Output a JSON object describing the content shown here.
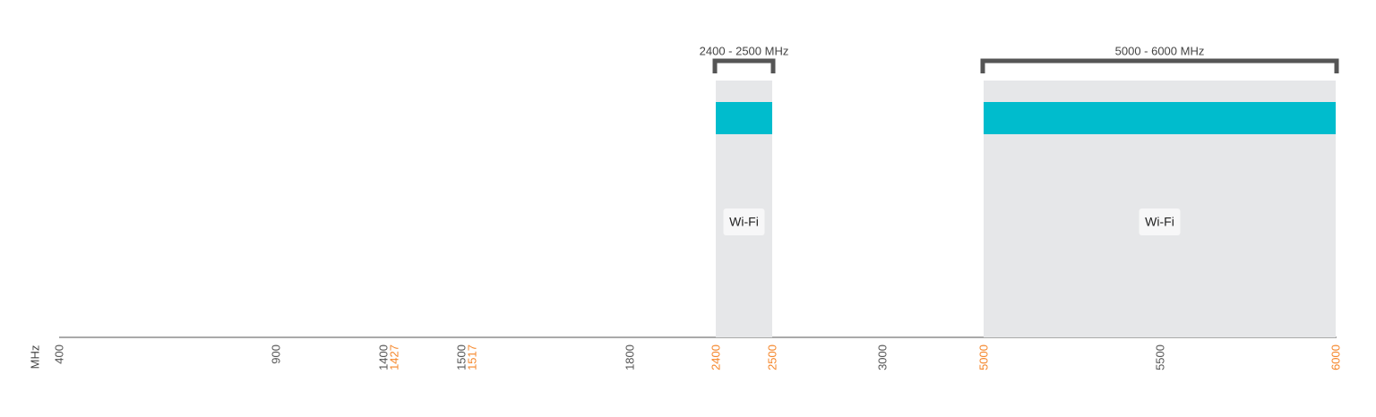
{
  "chart_data": {
    "type": "spectrum",
    "xlabel": "MHz",
    "xlim": [
      400,
      6000
    ],
    "xticks": [
      400,
      900,
      1400,
      1427,
      1500,
      1517,
      1800,
      2400,
      2500,
      3000,
      5000,
      5500,
      6000
    ],
    "xtick_colors": [
      "#555555",
      "#555555",
      "#555555",
      "#f5862a",
      "#555555",
      "#f5862a",
      "#555555",
      "#f5862a",
      "#f5862a",
      "#555555",
      "#f5862a",
      "#555555",
      "#f5862a"
    ],
    "bands": [
      {
        "range_label": "2400 - 2500 MHz",
        "start": 2400,
        "end": 2500,
        "name": "Wi-Fi",
        "color": "#00bccd"
      },
      {
        "range_label": "5000 - 6000 MHz",
        "start": 5000,
        "end": 6000,
        "name": "Wi-Fi",
        "color": "#00bccd"
      }
    ]
  }
}
